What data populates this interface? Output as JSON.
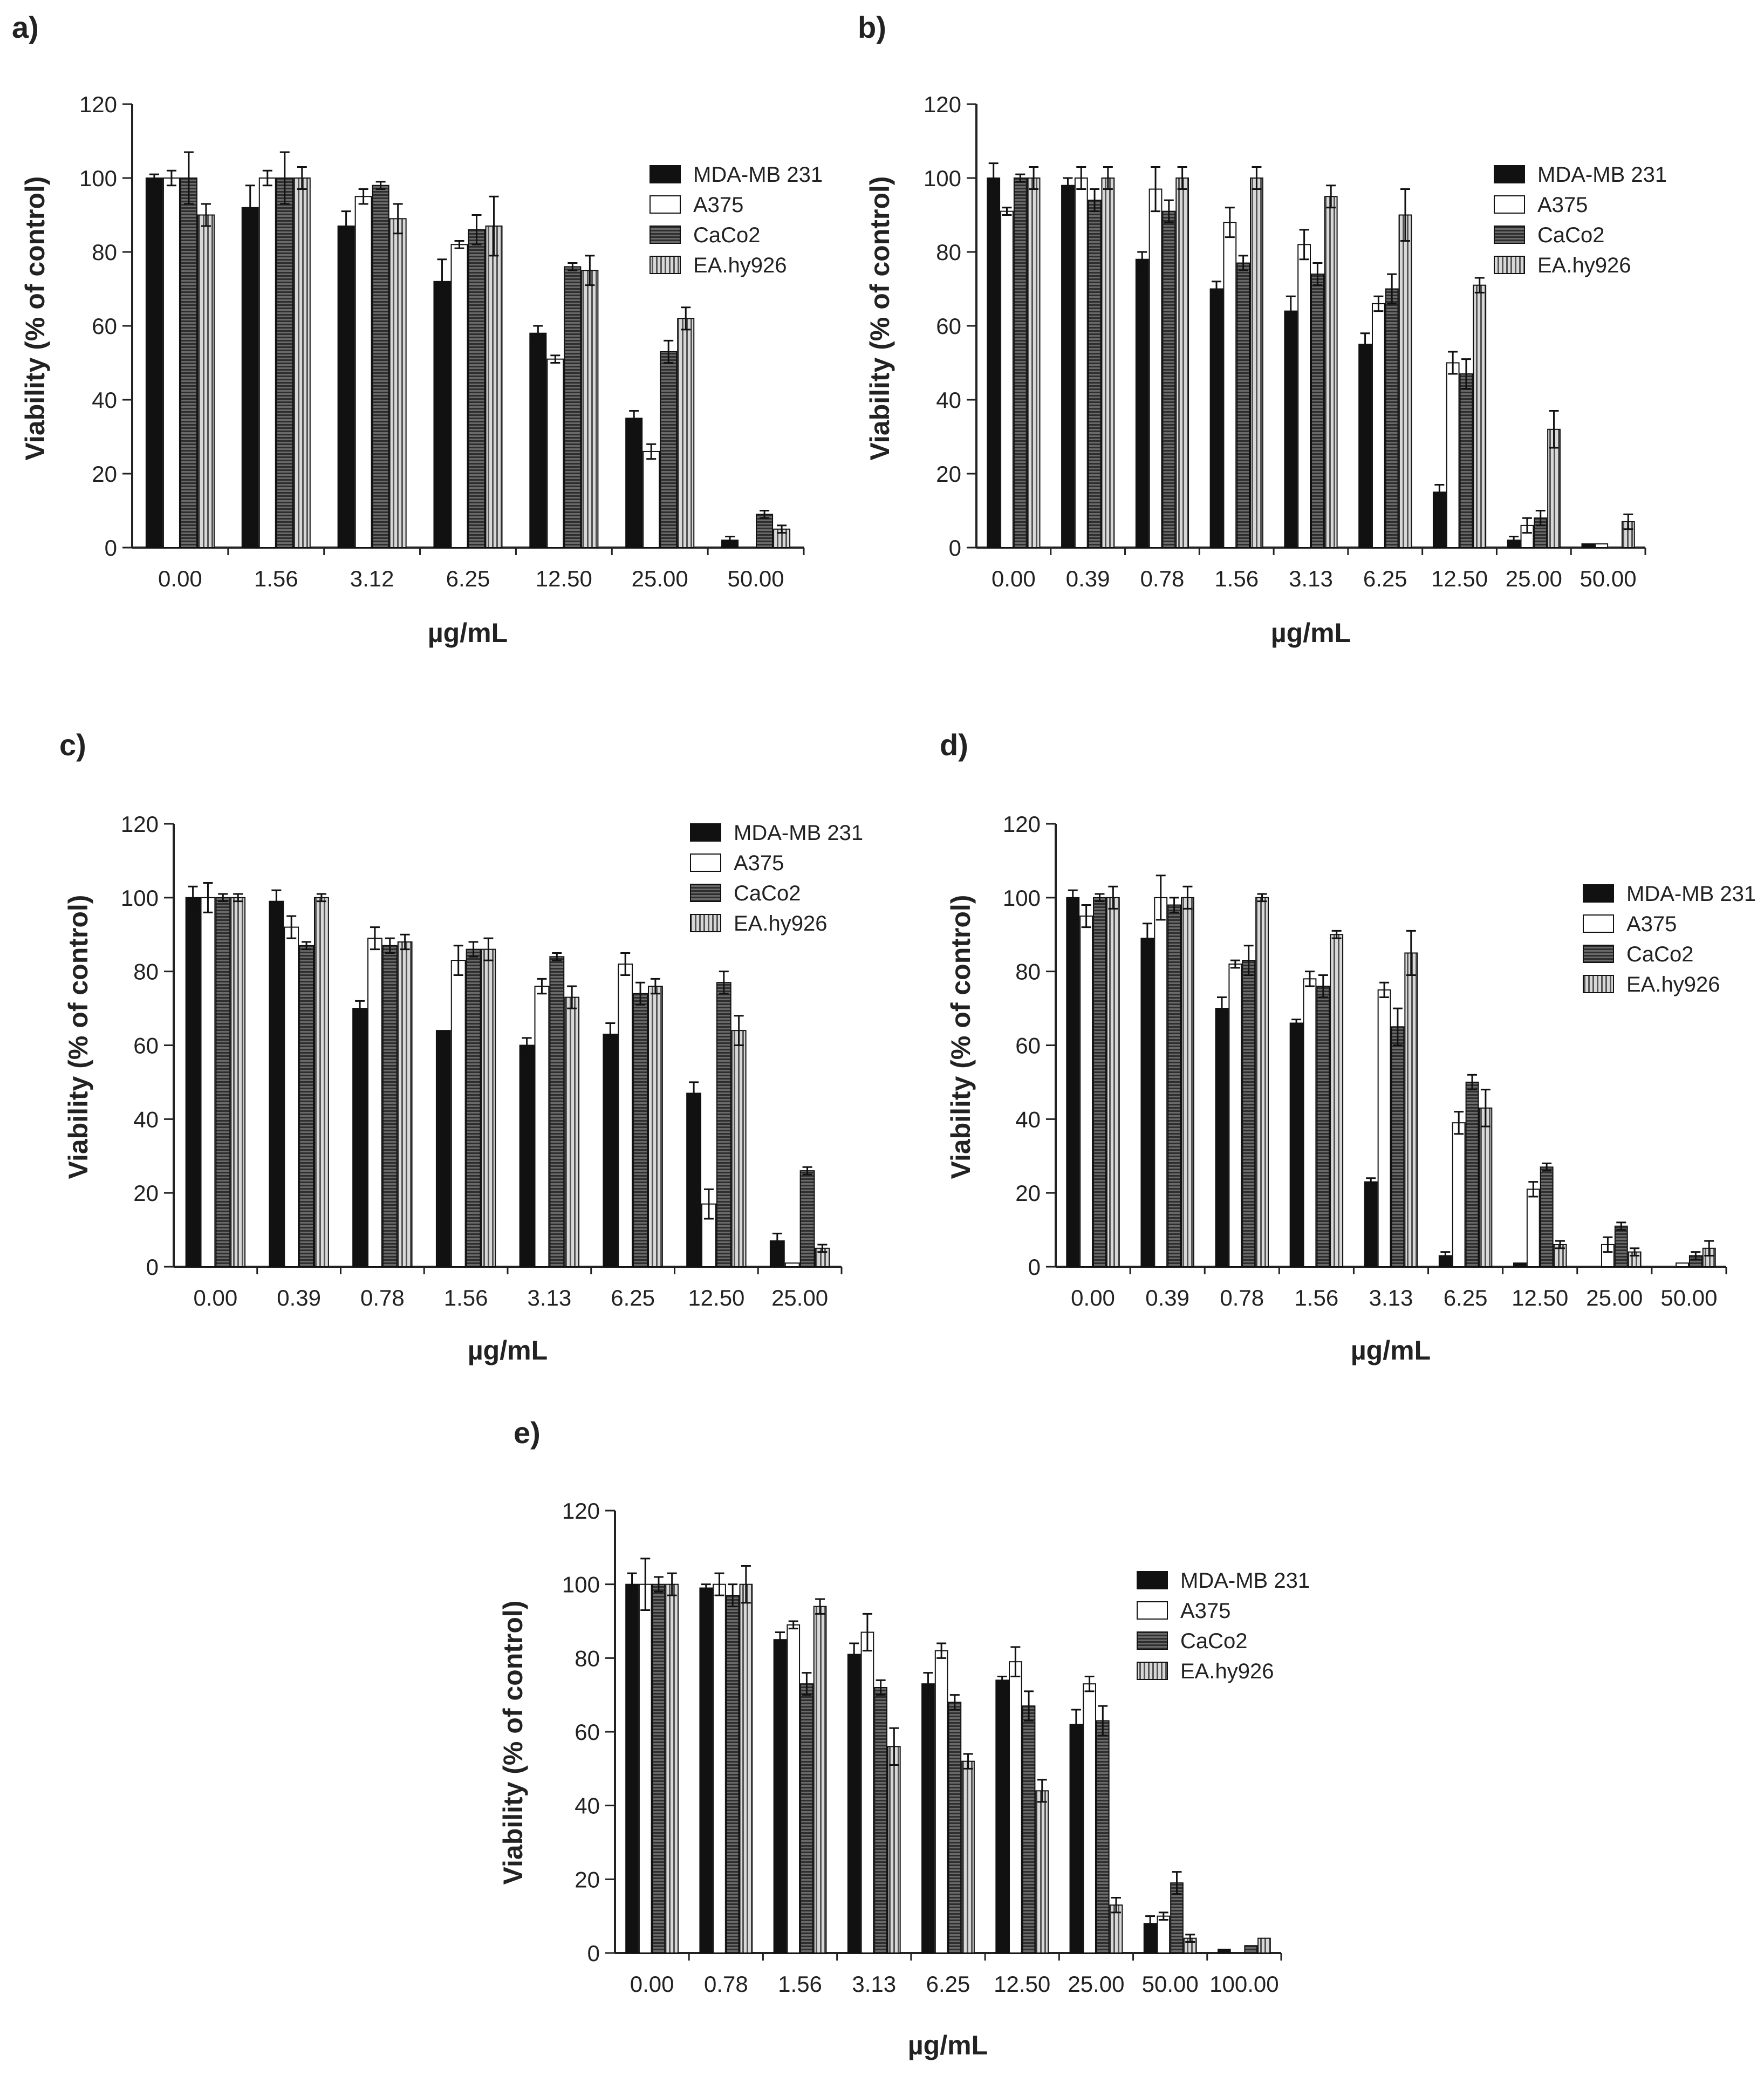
{
  "figure": {
    "series_names": [
      "MDA-MB 231",
      "A375",
      "CaCo2",
      "EA.hy926"
    ],
    "series_styles": [
      {
        "fill": "#111111",
        "pattern": "solid"
      },
      {
        "fill": "#ffffff",
        "pattern": "solid"
      },
      {
        "fill": "#555555",
        "pattern": "hstripe"
      },
      {
        "fill": "#bbbbbb",
        "pattern": "vstripe"
      }
    ]
  },
  "chart_data": [
    {
      "type": "bar",
      "panel_label": "a)",
      "xlabel": "µg/mL",
      "ylabel": "Viability (% of control)",
      "ylim": [
        0,
        120
      ],
      "yticks": [
        0,
        20,
        40,
        60,
        80,
        100,
        120
      ],
      "categories": [
        "0.00",
        "1.56",
        "3.12",
        "6.25",
        "12.50",
        "25.00",
        "50.00"
      ],
      "legend_position": "top-right",
      "series": [
        {
          "name": "MDA-MB 231",
          "values": [
            100,
            92,
            87,
            72,
            58,
            35,
            2
          ],
          "errors": [
            1,
            6,
            4,
            6,
            2,
            2,
            1
          ]
        },
        {
          "name": "A375",
          "values": [
            100,
            100,
            95,
            82,
            51,
            26,
            0
          ],
          "errors": [
            2,
            2,
            2,
            1,
            1,
            2,
            0
          ]
        },
        {
          "name": "CaCo2",
          "values": [
            100,
            100,
            98,
            86,
            76,
            53,
            9
          ],
          "errors": [
            7,
            7,
            1,
            4,
            1,
            3,
            1
          ]
        },
        {
          "name": "EA.hy926",
          "values": [
            90,
            100,
            89,
            87,
            75,
            62,
            5
          ],
          "errors": [
            3,
            3,
            4,
            8,
            4,
            3,
            1
          ]
        }
      ]
    },
    {
      "type": "bar",
      "panel_label": "b)",
      "xlabel": "µg/mL",
      "ylabel": "Viability (% of control)",
      "ylim": [
        0,
        120
      ],
      "yticks": [
        0,
        20,
        40,
        60,
        80,
        100,
        120
      ],
      "categories": [
        "0.00",
        "0.39",
        "0.78",
        "1.56",
        "3.13",
        "6.25",
        "12.50",
        "25.00",
        "50.00"
      ],
      "legend_position": "top-right",
      "series": [
        {
          "name": "MDA-MB 231",
          "values": [
            100,
            98,
            78,
            70,
            64,
            55,
            15,
            2,
            1
          ],
          "errors": [
            4,
            2,
            2,
            2,
            4,
            3,
            2,
            1,
            0
          ]
        },
        {
          "name": "A375",
          "values": [
            91,
            100,
            97,
            88,
            82,
            66,
            50,
            6,
            1
          ],
          "errors": [
            1,
            3,
            6,
            4,
            4,
            2,
            3,
            2,
            0
          ]
        },
        {
          "name": "CaCo2",
          "values": [
            100,
            94,
            91,
            77,
            74,
            70,
            47,
            8,
            0
          ],
          "errors": [
            1,
            3,
            3,
            2,
            3,
            4,
            4,
            2,
            0
          ]
        },
        {
          "name": "EA.hy926",
          "values": [
            100,
            100,
            100,
            100,
            95,
            90,
            71,
            32,
            7
          ],
          "errors": [
            3,
            3,
            3,
            3,
            3,
            7,
            2,
            5,
            2
          ]
        }
      ]
    },
    {
      "type": "bar",
      "panel_label": "c)",
      "xlabel": "µg/mL",
      "ylabel": "Viability (% of control)",
      "ylim": [
        0,
        120
      ],
      "yticks": [
        0,
        20,
        40,
        60,
        80,
        100,
        120
      ],
      "categories": [
        "0.00",
        "0.39",
        "0.78",
        "1.56",
        "3.13",
        "6.25",
        "12.50",
        "25.00"
      ],
      "legend_position": "top-right",
      "series": [
        {
          "name": "MDA-MB 231",
          "values": [
            100,
            99,
            70,
            64,
            60,
            63,
            47,
            7
          ],
          "errors": [
            3,
            3,
            2,
            0,
            2,
            3,
            3,
            2
          ]
        },
        {
          "name": "A375",
          "values": [
            100,
            92,
            89,
            83,
            76,
            82,
            17,
            1
          ],
          "errors": [
            4,
            3,
            3,
            4,
            2,
            3,
            4,
            0
          ]
        },
        {
          "name": "CaCo2",
          "values": [
            100,
            87,
            87,
            86,
            84,
            74,
            77,
            26
          ],
          "errors": [
            1,
            1,
            2,
            2,
            1,
            3,
            3,
            1
          ]
        },
        {
          "name": "EA.hy926",
          "values": [
            100,
            100,
            88,
            86,
            73,
            76,
            64,
            5
          ],
          "errors": [
            1,
            1,
            2,
            3,
            3,
            2,
            4,
            1
          ]
        }
      ]
    },
    {
      "type": "bar",
      "panel_label": "d)",
      "xlabel": "µg/mL",
      "ylabel": "Viability (% of control)",
      "ylim": [
        0,
        120
      ],
      "yticks": [
        0,
        20,
        40,
        60,
        80,
        100,
        120
      ],
      "categories": [
        "0.00",
        "0.39",
        "0.78",
        "1.56",
        "3.13",
        "6.25",
        "12.50",
        "25.00",
        "50.00"
      ],
      "legend_position": "top-right",
      "series": [
        {
          "name": "MDA-MB 231",
          "values": [
            100,
            89,
            70,
            66,
            23,
            3,
            1,
            0,
            0
          ],
          "errors": [
            2,
            4,
            3,
            1,
            1,
            1,
            0,
            0,
            0
          ]
        },
        {
          "name": "A375",
          "values": [
            95,
            100,
            82,
            78,
            75,
            39,
            21,
            6,
            1
          ],
          "errors": [
            3,
            6,
            1,
            2,
            2,
            3,
            2,
            2,
            0
          ]
        },
        {
          "name": "CaCo2",
          "values": [
            100,
            98,
            83,
            76,
            65,
            50,
            27,
            11,
            3
          ],
          "errors": [
            1,
            2,
            4,
            3,
            5,
            2,
            1,
            1,
            1
          ]
        },
        {
          "name": "EA.hy926",
          "values": [
            100,
            100,
            100,
            90,
            85,
            43,
            6,
            4,
            5
          ],
          "errors": [
            3,
            3,
            1,
            1,
            6,
            5,
            1,
            1,
            2
          ]
        }
      ]
    },
    {
      "type": "bar",
      "panel_label": "e)",
      "xlabel": "µg/mL",
      "ylabel": "Viability (% of control)",
      "ylim": [
        0,
        120
      ],
      "yticks": [
        0,
        20,
        40,
        60,
        80,
        100,
        120
      ],
      "categories": [
        "0.00",
        "0.78",
        "1.56",
        "3.13",
        "6.25",
        "12.50",
        "25.00",
        "50.00",
        "100.00"
      ],
      "legend_position": "top-right",
      "series": [
        {
          "name": "MDA-MB 231",
          "values": [
            100,
            99,
            85,
            81,
            73,
            74,
            62,
            8,
            1
          ],
          "errors": [
            3,
            1,
            2,
            3,
            3,
            1,
            4,
            2,
            0
          ]
        },
        {
          "name": "A375",
          "values": [
            100,
            100,
            89,
            87,
            82,
            79,
            73,
            10,
            0
          ],
          "errors": [
            7,
            3,
            1,
            5,
            2,
            4,
            2,
            1,
            0
          ]
        },
        {
          "name": "CaCo2",
          "values": [
            100,
            97,
            73,
            72,
            68,
            67,
            63,
            19,
            2
          ],
          "errors": [
            2,
            3,
            3,
            2,
            2,
            4,
            4,
            3,
            0
          ]
        },
        {
          "name": "EA.hy926",
          "values": [
            100,
            100,
            94,
            56,
            52,
            44,
            13,
            4,
            4
          ],
          "errors": [
            3,
            5,
            2,
            5,
            2,
            3,
            2,
            1,
            0
          ]
        }
      ]
    }
  ]
}
